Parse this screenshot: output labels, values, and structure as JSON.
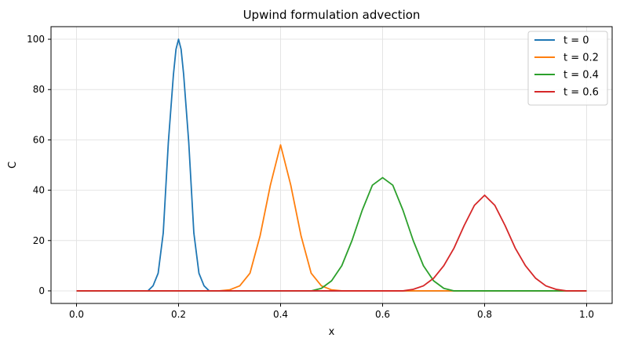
{
  "chart_data": {
    "type": "line",
    "title": "Upwind formulation advection",
    "xlabel": "x",
    "ylabel": "C",
    "xlim": [
      -0.05,
      1.05
    ],
    "ylim": [
      -5,
      105
    ],
    "xticks": [
      0.0,
      0.2,
      0.4,
      0.6,
      0.8,
      1.0
    ],
    "xtick_labels": [
      "0.0",
      "0.2",
      "0.4",
      "0.6",
      "0.8",
      "1.0"
    ],
    "yticks": [
      0,
      20,
      40,
      60,
      80,
      100
    ],
    "ytick_labels": [
      "0",
      "20",
      "40",
      "60",
      "80",
      "100"
    ],
    "grid": true,
    "legend_position": "top-right",
    "series": [
      {
        "name": "t = 0",
        "color": "#1f77b4",
        "x": [
          0.0,
          0.14,
          0.15,
          0.16,
          0.17,
          0.18,
          0.19,
          0.195,
          0.2,
          0.205,
          0.21,
          0.22,
          0.23,
          0.24,
          0.25,
          0.26,
          1.0
        ],
        "y": [
          0,
          0,
          2,
          7,
          23,
          59,
          86,
          96,
          100,
          96,
          86,
          59,
          23,
          7,
          2,
          0,
          0
        ]
      },
      {
        "name": "t = 0.2",
        "color": "#ff7f0e",
        "x": [
          0.0,
          0.28,
          0.3,
          0.32,
          0.34,
          0.36,
          0.38,
          0.4,
          0.42,
          0.44,
          0.46,
          0.48,
          0.5,
          0.52,
          1.0
        ],
        "y": [
          0,
          0,
          0.4,
          2,
          7,
          22,
          42,
          58,
          42,
          22,
          7,
          2,
          0.4,
          0,
          0
        ]
      },
      {
        "name": "t = 0.4",
        "color": "#2ca02c",
        "x": [
          0.0,
          0.46,
          0.48,
          0.5,
          0.52,
          0.54,
          0.56,
          0.58,
          0.6,
          0.62,
          0.64,
          0.66,
          0.68,
          0.7,
          0.72,
          0.74,
          1.0
        ],
        "y": [
          0,
          0,
          1,
          4,
          10,
          20,
          32,
          42,
          45,
          42,
          32,
          20,
          10,
          4,
          1,
          0,
          0
        ]
      },
      {
        "name": "t = 0.6",
        "color": "#d62728",
        "x": [
          0.0,
          0.64,
          0.66,
          0.68,
          0.7,
          0.72,
          0.74,
          0.76,
          0.78,
          0.8,
          0.82,
          0.84,
          0.86,
          0.88,
          0.9,
          0.92,
          0.94,
          0.96,
          1.0
        ],
        "y": [
          0,
          0,
          0.6,
          2,
          5,
          10,
          17,
          26,
          34,
          38,
          34,
          26,
          17,
          10,
          5,
          2,
          0.6,
          0,
          0
        ]
      }
    ]
  }
}
